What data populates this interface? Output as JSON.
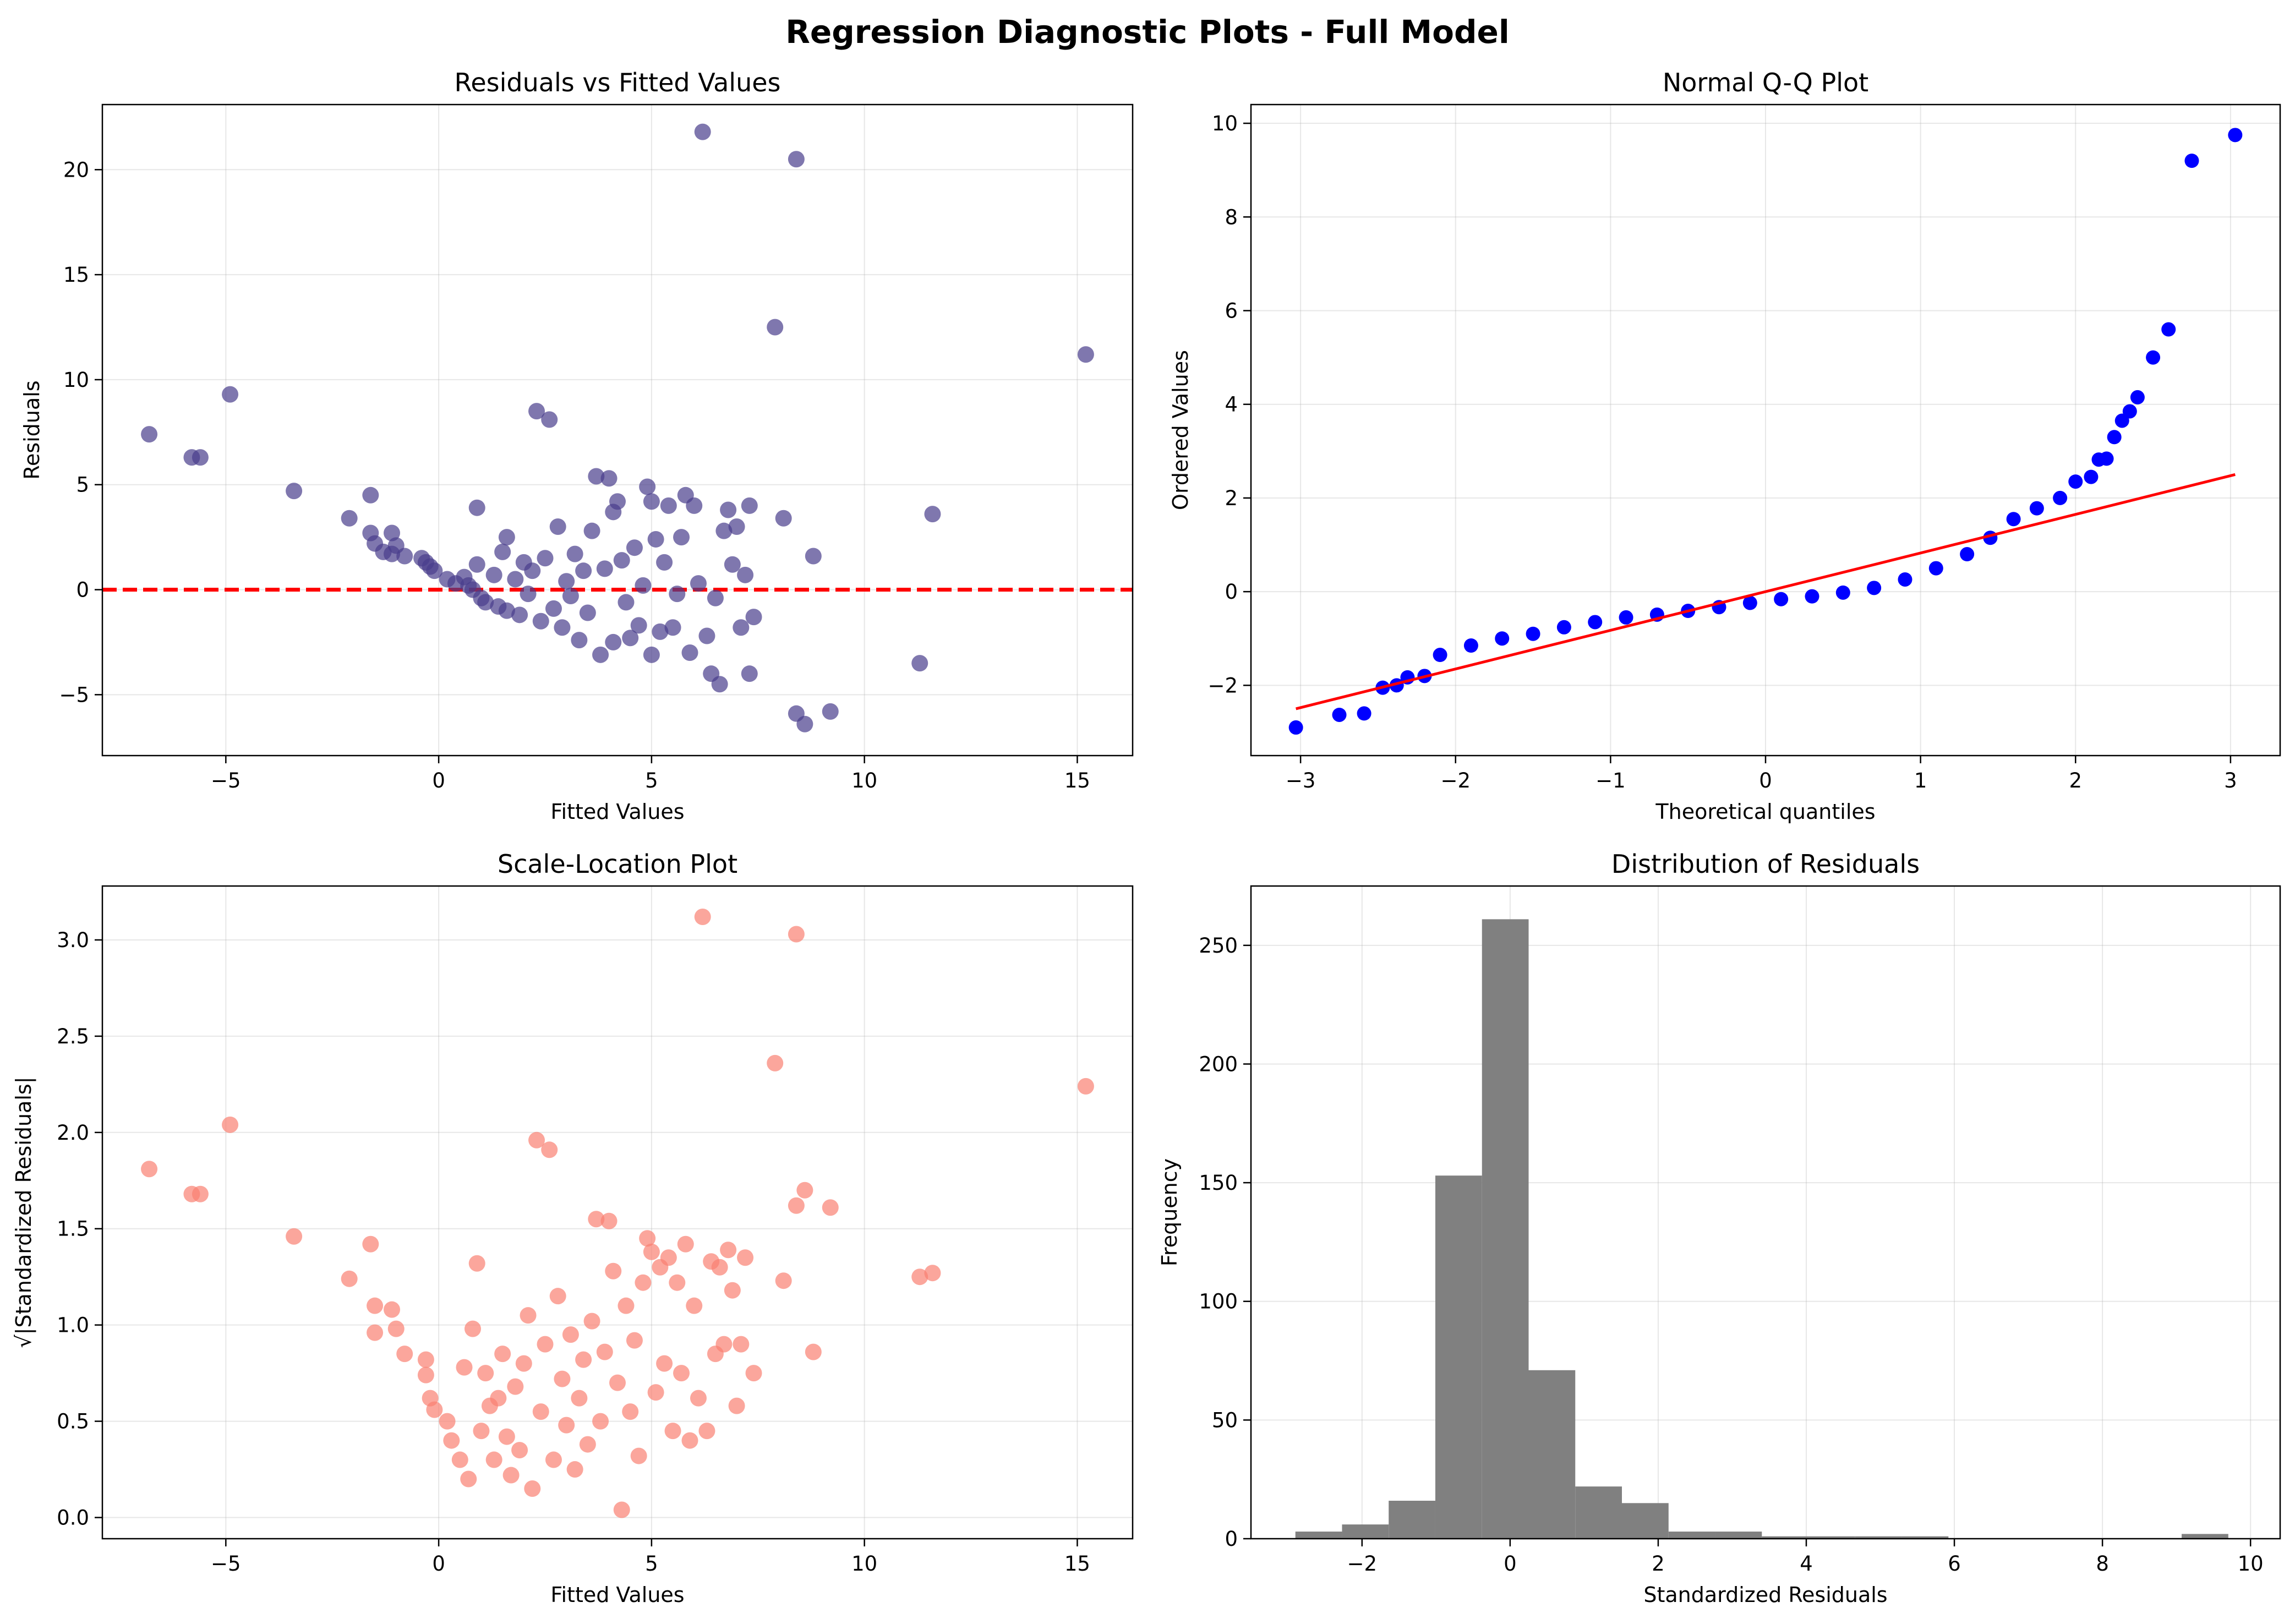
{
  "figure": {
    "suptitle": "Regression Diagnostic Plots - Full Model"
  },
  "chart_data": [
    {
      "id": "resid",
      "type": "scatter",
      "title": "Residuals vs Fitted Values",
      "xlabel": "Fitted Values",
      "ylabel": "Residuals",
      "xlim": [
        -7.9,
        16.3
      ],
      "ylim": [
        -7.9,
        23.1
      ],
      "xticks": [
        -5,
        0,
        5,
        10,
        15
      ],
      "yticks": [
        -5,
        0,
        5,
        10,
        15,
        20
      ],
      "grid": true,
      "point_color": "#483D8B",
      "reference_line": {
        "y": 0,
        "color": "#ff0000",
        "style": "dashed"
      },
      "points": [
        [
          -6.8,
          7.4
        ],
        [
          -5.8,
          6.3
        ],
        [
          -5.6,
          6.3
        ],
        [
          -4.9,
          9.3
        ],
        [
          -3.4,
          4.7
        ],
        [
          -2.1,
          3.4
        ],
        [
          -1.6,
          4.5
        ],
        [
          -1.6,
          2.7
        ],
        [
          -1.5,
          2.2
        ],
        [
          -1.3,
          1.8
        ],
        [
          -1.1,
          2.7
        ],
        [
          -1.0,
          2.1
        ],
        [
          -1.1,
          1.7
        ],
        [
          -0.8,
          1.6
        ],
        [
          -0.4,
          1.5
        ],
        [
          -0.3,
          1.3
        ],
        [
          -0.2,
          1.1
        ],
        [
          -0.1,
          0.9
        ],
        [
          0.2,
          0.5
        ],
        [
          0.4,
          0.3
        ],
        [
          0.6,
          0.6
        ],
        [
          0.7,
          0.2
        ],
        [
          0.8,
          0.0
        ],
        [
          0.9,
          3.9
        ],
        [
          0.9,
          1.2
        ],
        [
          1.0,
          -0.4
        ],
        [
          1.1,
          -0.6
        ],
        [
          1.3,
          0.7
        ],
        [
          1.4,
          -0.8
        ],
        [
          1.5,
          1.8
        ],
        [
          1.6,
          2.5
        ],
        [
          1.6,
          -1.0
        ],
        [
          1.8,
          0.5
        ],
        [
          1.9,
          -1.2
        ],
        [
          2.0,
          1.3
        ],
        [
          2.1,
          -0.2
        ],
        [
          2.2,
          0.9
        ],
        [
          2.3,
          8.5
        ],
        [
          2.4,
          -1.5
        ],
        [
          2.5,
          1.5
        ],
        [
          2.6,
          8.1
        ],
        [
          2.7,
          -0.9
        ],
        [
          2.8,
          3.0
        ],
        [
          2.9,
          -1.8
        ],
        [
          3.0,
          0.4
        ],
        [
          3.1,
          -0.3
        ],
        [
          3.2,
          1.7
        ],
        [
          3.3,
          -2.4
        ],
        [
          3.4,
          0.9
        ],
        [
          3.5,
          -1.1
        ],
        [
          3.6,
          2.8
        ],
        [
          3.7,
          5.4
        ],
        [
          3.8,
          -3.1
        ],
        [
          3.9,
          1.0
        ],
        [
          4.0,
          5.3
        ],
        [
          4.1,
          3.7
        ],
        [
          4.1,
          -2.5
        ],
        [
          4.2,
          4.2
        ],
        [
          4.3,
          1.4
        ],
        [
          4.4,
          -0.6
        ],
        [
          4.5,
          -2.3
        ],
        [
          4.6,
          2.0
        ],
        [
          4.7,
          -1.7
        ],
        [
          4.8,
          0.2
        ],
        [
          4.9,
          4.9
        ],
        [
          5.0,
          4.2
        ],
        [
          5.0,
          -3.1
        ],
        [
          5.1,
          2.4
        ],
        [
          5.2,
          -2.0
        ],
        [
          5.3,
          1.3
        ],
        [
          5.4,
          4.0
        ],
        [
          5.5,
          -1.8
        ],
        [
          5.6,
          -0.2
        ],
        [
          5.7,
          2.5
        ],
        [
          5.8,
          4.5
        ],
        [
          5.9,
          -3.0
        ],
        [
          6.0,
          4.0
        ],
        [
          6.1,
          0.3
        ],
        [
          6.2,
          21.8
        ],
        [
          6.3,
          -2.2
        ],
        [
          6.4,
          -4.0
        ],
        [
          6.5,
          -0.4
        ],
        [
          6.6,
          -4.5
        ],
        [
          6.7,
          2.8
        ],
        [
          6.8,
          3.8
        ],
        [
          6.9,
          1.2
        ],
        [
          7.0,
          3.0
        ],
        [
          7.1,
          -1.8
        ],
        [
          7.2,
          0.7
        ],
        [
          7.3,
          4.0
        ],
        [
          7.4,
          -1.3
        ],
        [
          7.3,
          -4.0
        ],
        [
          7.9,
          12.5
        ],
        [
          8.1,
          3.4
        ],
        [
          8.4,
          20.5
        ],
        [
          8.4,
          -5.9
        ],
        [
          8.6,
          -6.4
        ],
        [
          8.8,
          1.6
        ],
        [
          9.2,
          -5.8
        ],
        [
          11.3,
          -3.5
        ],
        [
          11.6,
          3.6
        ],
        [
          15.2,
          11.2
        ]
      ]
    },
    {
      "id": "qq",
      "type": "scatter",
      "title": "Normal Q-Q Plot",
      "xlabel": "Theoretical quantiles",
      "ylabel": "Ordered Values",
      "xlim": [
        -3.32,
        3.32
      ],
      "ylim": [
        -3.5,
        10.4
      ],
      "xticks": [
        -3,
        -2,
        -1,
        0,
        1,
        2,
        3
      ],
      "yticks": [
        -2,
        0,
        2,
        4,
        6,
        8,
        10
      ],
      "grid": true,
      "point_color": "#0000ff",
      "fit_line": {
        "x": [
          -3.03,
          3.03
        ],
        "y": [
          -2.5,
          2.5
        ],
        "color": "#ff0000"
      },
      "points": [
        [
          -3.03,
          -2.9
        ],
        [
          -2.75,
          -2.63
        ],
        [
          -2.59,
          -2.6
        ],
        [
          -2.47,
          -2.05
        ],
        [
          -2.38,
          -2.0
        ],
        [
          -2.31,
          -1.83
        ],
        [
          -2.2,
          -1.8
        ],
        [
          -2.1,
          -1.35
        ],
        [
          -1.9,
          -1.15
        ],
        [
          -1.7,
          -1.0
        ],
        [
          -1.5,
          -0.9
        ],
        [
          -1.3,
          -0.76
        ],
        [
          -1.1,
          -0.65
        ],
        [
          -0.9,
          -0.55
        ],
        [
          -0.7,
          -0.49
        ],
        [
          -0.5,
          -0.41
        ],
        [
          -0.3,
          -0.33
        ],
        [
          -0.1,
          -0.24
        ],
        [
          0.1,
          -0.16
        ],
        [
          0.3,
          -0.1
        ],
        [
          0.5,
          -0.02
        ],
        [
          0.7,
          0.08
        ],
        [
          0.9,
          0.26
        ],
        [
          1.1,
          0.5
        ],
        [
          1.3,
          0.8
        ],
        [
          1.45,
          1.15
        ],
        [
          1.6,
          1.55
        ],
        [
          1.75,
          1.78
        ],
        [
          1.9,
          2.0
        ],
        [
          2.0,
          2.35
        ],
        [
          2.1,
          2.45
        ],
        [
          2.15,
          2.82
        ],
        [
          2.2,
          2.84
        ],
        [
          2.25,
          3.3
        ],
        [
          2.3,
          3.65
        ],
        [
          2.35,
          3.85
        ],
        [
          2.4,
          4.15
        ],
        [
          2.5,
          5.0
        ],
        [
          2.6,
          5.6
        ],
        [
          2.75,
          9.2
        ],
        [
          3.03,
          9.75
        ]
      ]
    },
    {
      "id": "scale",
      "type": "scatter",
      "title": "Scale-Location Plot",
      "xlabel": "Fitted Values",
      "ylabel": "√|Standardized Residuals|",
      "xlim": [
        -7.9,
        16.3
      ],
      "ylim": [
        -0.11,
        3.28
      ],
      "xticks": [
        -5,
        0,
        5,
        10,
        15
      ],
      "yticks": [
        0.0,
        0.5,
        1.0,
        1.5,
        2.0,
        2.5,
        3.0
      ],
      "grid": true,
      "point_color": "#FA8072",
      "points": [
        [
          -6.8,
          1.81
        ],
        [
          -5.8,
          1.68
        ],
        [
          -5.6,
          1.68
        ],
        [
          -4.9,
          2.04
        ],
        [
          -3.4,
          1.46
        ],
        [
          -2.1,
          1.24
        ],
        [
          -1.6,
          1.42
        ],
        [
          -1.5,
          1.1
        ],
        [
          -1.5,
          0.96
        ],
        [
          -1.1,
          1.08
        ],
        [
          -1.0,
          0.98
        ],
        [
          -0.8,
          0.85
        ],
        [
          -0.3,
          0.82
        ],
        [
          -0.3,
          0.74
        ],
        [
          -0.2,
          0.62
        ],
        [
          -0.1,
          0.56
        ],
        [
          0.2,
          0.5
        ],
        [
          0.3,
          0.4
        ],
        [
          0.5,
          0.3
        ],
        [
          0.6,
          0.78
        ],
        [
          0.7,
          0.2
        ],
        [
          0.8,
          0.98
        ],
        [
          0.9,
          1.32
        ],
        [
          1.0,
          0.45
        ],
        [
          1.1,
          0.75
        ],
        [
          1.2,
          0.58
        ],
        [
          1.3,
          0.3
        ],
        [
          1.4,
          0.62
        ],
        [
          1.5,
          0.85
        ],
        [
          1.6,
          0.42
        ],
        [
          1.7,
          0.22
        ],
        [
          1.8,
          0.68
        ],
        [
          1.9,
          0.35
        ],
        [
          2.0,
          0.8
        ],
        [
          2.1,
          1.05
        ],
        [
          2.2,
          0.15
        ],
        [
          2.3,
          1.96
        ],
        [
          2.4,
          0.55
        ],
        [
          2.5,
          0.9
        ],
        [
          2.6,
          1.91
        ],
        [
          2.7,
          0.3
        ],
        [
          2.8,
          1.15
        ],
        [
          2.9,
          0.72
        ],
        [
          3.0,
          0.48
        ],
        [
          3.1,
          0.95
        ],
        [
          3.2,
          0.25
        ],
        [
          3.3,
          0.62
        ],
        [
          3.4,
          0.82
        ],
        [
          3.5,
          0.38
        ],
        [
          3.6,
          1.02
        ],
        [
          3.7,
          1.55
        ],
        [
          3.8,
          0.5
        ],
        [
          3.9,
          0.86
        ],
        [
          4.0,
          1.54
        ],
        [
          4.1,
          1.28
        ],
        [
          4.2,
          0.7
        ],
        [
          4.3,
          0.04
        ],
        [
          4.4,
          1.1
        ],
        [
          4.5,
          0.55
        ],
        [
          4.6,
          0.92
        ],
        [
          4.7,
          0.32
        ],
        [
          4.8,
          1.22
        ],
        [
          4.9,
          1.45
        ],
        [
          5.0,
          1.38
        ],
        [
          5.1,
          0.65
        ],
        [
          5.2,
          1.3
        ],
        [
          5.3,
          0.8
        ],
        [
          5.4,
          1.35
        ],
        [
          5.5,
          0.45
        ],
        [
          5.6,
          1.22
        ],
        [
          5.7,
          0.75
        ],
        [
          5.8,
          1.42
        ],
        [
          5.9,
          0.4
        ],
        [
          6.0,
          1.1
        ],
        [
          6.1,
          0.62
        ],
        [
          6.2,
          3.12
        ],
        [
          6.3,
          0.45
        ],
        [
          6.4,
          1.33
        ],
        [
          6.5,
          0.85
        ],
        [
          6.6,
          1.3
        ],
        [
          6.7,
          0.9
        ],
        [
          6.8,
          1.39
        ],
        [
          6.9,
          1.18
        ],
        [
          7.0,
          0.58
        ],
        [
          7.1,
          0.9
        ],
        [
          7.2,
          1.35
        ],
        [
          7.4,
          0.75
        ],
        [
          7.9,
          2.36
        ],
        [
          8.1,
          1.23
        ],
        [
          8.4,
          3.03
        ],
        [
          8.4,
          1.62
        ],
        [
          8.6,
          1.7
        ],
        [
          8.8,
          0.86
        ],
        [
          9.2,
          1.61
        ],
        [
          11.3,
          1.25
        ],
        [
          11.6,
          1.27
        ],
        [
          15.2,
          2.24
        ]
      ]
    },
    {
      "id": "hist",
      "type": "bar",
      "title": "Distribution of Residuals",
      "xlabel": "Standardized Residuals",
      "ylabel": "Frequency",
      "xlim": [
        -3.5,
        10.4
      ],
      "ylim": [
        0,
        275
      ],
      "xticks": [
        -2,
        0,
        2,
        4,
        6,
        8,
        10
      ],
      "yticks": [
        0,
        50,
        100,
        150,
        200,
        250
      ],
      "grid": true,
      "bar_color": "#808080",
      "bins": [
        -2.9,
        -2.27,
        -1.64,
        -1.01,
        -0.38,
        0.25,
        0.88,
        1.51,
        2.14,
        2.77,
        3.4,
        4.03,
        4.66,
        5.29,
        5.92,
        6.55,
        7.18,
        7.81,
        8.44,
        9.07,
        9.7
      ],
      "counts": [
        3,
        6,
        16,
        153,
        261,
        71,
        22,
        15,
        3,
        3,
        1,
        1,
        1,
        1,
        0,
        0,
        0,
        0,
        0,
        2
      ]
    }
  ]
}
